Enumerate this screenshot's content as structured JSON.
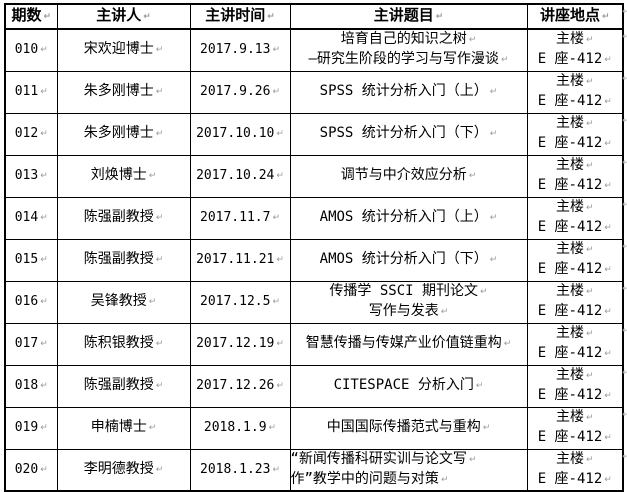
{
  "page": {
    "background": "#ffffff",
    "border_color": "#000000",
    "text_color": "#000000",
    "mark_color": "#9a9a9a"
  },
  "marks": {
    "paragraph_mark": "↵"
  },
  "table": {
    "columns": [
      "期数",
      "主讲人",
      "主讲时间",
      "主讲题目",
      "讲座地点"
    ],
    "rows": [
      {
        "no": "010",
        "speaker": "宋欢迎博士",
        "time": "2017.9.13",
        "topic_lines": [
          "培育自己的知识之树",
          "—研究生阶段的学习与写作漫谈"
        ],
        "location_lines": [
          "主楼",
          "E 座-412"
        ]
      },
      {
        "no": "011",
        "speaker": "朱多刚博士",
        "time": "2017.9.26",
        "topic_lines": [
          "SPSS 统计分析入门（上）"
        ],
        "location_lines": [
          "主楼",
          "E 座-412"
        ]
      },
      {
        "no": "012",
        "speaker": "朱多刚博士",
        "time": "2017.10.10",
        "topic_lines": [
          "SPSS 统计分析入门（下）"
        ],
        "location_lines": [
          "主楼",
          "E 座-412"
        ]
      },
      {
        "no": "013",
        "speaker": "刘焕博士",
        "time": "2017.10.24",
        "topic_lines": [
          "调节与中介效应分析"
        ],
        "location_lines": [
          "主楼",
          "E 座-412"
        ]
      },
      {
        "no": "014",
        "speaker": "陈强副教授",
        "time": "2017.11.7",
        "topic_lines": [
          "AMOS 统计分析入门（上）"
        ],
        "location_lines": [
          "主楼",
          "E 座-412"
        ]
      },
      {
        "no": "015",
        "speaker": "陈强副教授",
        "time": "2017.11.21",
        "topic_lines": [
          "AMOS 统计分析入门（下）"
        ],
        "location_lines": [
          "主楼",
          "E 座-412"
        ]
      },
      {
        "no": "016",
        "speaker": "吴锋教授",
        "time": "2017.12.5",
        "topic_lines": [
          "传播学 SSCI 期刊论文",
          "写作与发表"
        ],
        "location_lines": [
          "主楼",
          "E 座-412"
        ]
      },
      {
        "no": "017",
        "speaker": "陈积银教授",
        "time": "2017.12.19",
        "topic_lines": [
          "智慧传播与传媒产业价值链重构"
        ],
        "location_lines": [
          "主楼",
          "E 座-412"
        ]
      },
      {
        "no": "018",
        "speaker": "陈强副教授",
        "time": "2017.12.26",
        "topic_lines": [
          "CITESPACE 分析入门"
        ],
        "location_lines": [
          "主楼",
          "E 座-412"
        ]
      },
      {
        "no": "019",
        "speaker": "申楠博士",
        "time": "2018.1.9",
        "topic_lines": [
          "中国国际传播范式与重构"
        ],
        "location_lines": [
          "主楼",
          "E 座-412"
        ]
      },
      {
        "no": "020",
        "speaker": "李明德教授",
        "time": "2018.1.23",
        "topic_align": "left",
        "topic_lines": [
          "“新闻传播科研实训与论文写",
          "作”教学中的问题与对策"
        ],
        "location_lines": [
          "主楼",
          "E 座-412"
        ]
      }
    ]
  }
}
